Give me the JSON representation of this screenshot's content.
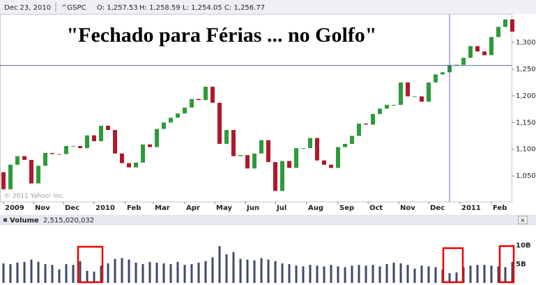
{
  "chart_data": [
    {
      "type": "candlestick",
      "header": {
        "date": "Dec 23, 2010",
        "symbol": "^GSPC",
        "open": "O: 1,257.53",
        "high": "H: 1,258.59",
        "low": "L: 1,254.05",
        "close": {
          "value": 1256.77,
          "label": "C: 1,256.77"
        },
        "crosshair_index": 64
      },
      "title": "\"Fechado para Férias ... no Golfo\"",
      "watermark": "© 2011 Yahoo! Inc.",
      "open": [
        1057,
        1025,
        1071,
        1087,
        1080,
        1036,
        1069,
        1093,
        1091,
        1091,
        1106,
        1106,
        1102,
        1126,
        1115,
        1144,
        1136,
        1092,
        1074,
        1066,
        1075,
        1109,
        1104,
        1138,
        1150,
        1159,
        1167,
        1178,
        1194,
        1192,
        1217,
        1187,
        1110,
        1136,
        1087,
        1089,
        1064,
        1092,
        1117,
        1076,
        1022,
        1078,
        1065,
        1102,
        1102,
        1121,
        1079,
        1071,
        1065,
        1104,
        1110,
        1125,
        1148,
        1146,
        1166,
        1176,
        1183,
        1183,
        1225,
        1199,
        1199,
        1189,
        1225,
        1240,
        1244,
        1257,
        1258,
        1271,
        1293,
        1283,
        1276,
        1310,
        1329,
        1343
      ],
      "close": [
        1025,
        1071,
        1087,
        1080,
        1036,
        1069,
        1093,
        1091,
        1091,
        1106,
        1106,
        1102,
        1126,
        1115,
        1144,
        1136,
        1092,
        1074,
        1066,
        1075,
        1109,
        1104,
        1138,
        1150,
        1159,
        1167,
        1178,
        1194,
        1192,
        1217,
        1187,
        1110,
        1136,
        1087,
        1089,
        1064,
        1092,
        1117,
        1076,
        1022,
        1078,
        1065,
        1102,
        1102,
        1121,
        1079,
        1071,
        1065,
        1104,
        1110,
        1125,
        1148,
        1146,
        1166,
        1176,
        1183,
        1183,
        1225,
        1199,
        1199,
        1189,
        1225,
        1240,
        1244,
        1257,
        1258,
        1271,
        1293,
        1283,
        1276,
        1310,
        1329,
        1343,
        1320
      ],
      "up_color": "#2e9a3a",
      "down_color": "#b0182c",
      "xticks": [
        {
          "value": 0,
          "label": "2009"
        },
        {
          "value": 4.3,
          "label": "Nov"
        },
        {
          "value": 8.6,
          "label": "Dec"
        },
        {
          "value": 13,
          "label": "2010"
        },
        {
          "value": 17.5,
          "label": "Feb"
        },
        {
          "value": 21.5,
          "label": "Mar"
        },
        {
          "value": 26,
          "label": "Apr"
        },
        {
          "value": 30.3,
          "label": "May"
        },
        {
          "value": 34.7,
          "label": "Jun"
        },
        {
          "value": 39,
          "label": "Jul"
        },
        {
          "value": 43.5,
          "label": "Aug"
        },
        {
          "value": 48,
          "label": "Sep"
        },
        {
          "value": 52.3,
          "label": "Oct"
        },
        {
          "value": 56.7,
          "label": "Nov"
        },
        {
          "value": 61,
          "label": "Dec"
        },
        {
          "value": 65.5,
          "label": "2011"
        },
        {
          "value": 70,
          "label": "Feb"
        }
      ],
      "ylim": [
        1002,
        1352
      ],
      "yticks": [
        {
          "value": 1050,
          "label": "1,050"
        },
        {
          "value": 1100,
          "label": "1,100"
        },
        {
          "value": 1150,
          "label": "1,150"
        },
        {
          "value": 1200,
          "label": "1,200"
        },
        {
          "value": 1250,
          "label": "1,250"
        },
        {
          "value": 1300,
          "label": "1,300"
        }
      ],
      "grid": false
    },
    {
      "type": "bar",
      "title": "Volume",
      "latest": "2,515,020,032",
      "close_button": "×",
      "values": [
        5.2,
        5.0,
        5.4,
        5.6,
        6.2,
        5.6,
        5.0,
        4.8,
        3.6,
        5.0,
        4.8,
        5.8,
        3.2,
        3.0,
        4.6,
        5.2,
        6.4,
        6.6,
        6.2,
        5.4,
        5.0,
        5.6,
        5.4,
        5.2,
        5.0,
        5.6,
        4.8,
        5.0,
        5.4,
        5.8,
        6.8,
        9.8,
        7.6,
        8.2,
        6.4,
        6.2,
        6.0,
        6.6,
        6.2,
        5.8,
        5.2,
        5.0,
        4.6,
        4.4,
        4.8,
        4.6,
        4.4,
        4.8,
        4.4,
        4.2,
        4.6,
        4.8,
        4.6,
        4.8,
        4.4,
        5.0,
        5.4,
        5.2,
        4.8,
        3.8,
        4.6,
        4.4,
        4.2,
        3.6,
        2.6,
        2.8,
        4.2,
        4.6,
        4.8,
        4.8,
        4.6,
        4.4,
        4.2,
        5.6
      ],
      "color": "#3d4a6b",
      "ylim": [
        0,
        14.8
      ],
      "yticks": [
        {
          "value": 5,
          "label": "5B"
        },
        {
          "value": 10,
          "label": "10B"
        }
      ]
    }
  ]
}
